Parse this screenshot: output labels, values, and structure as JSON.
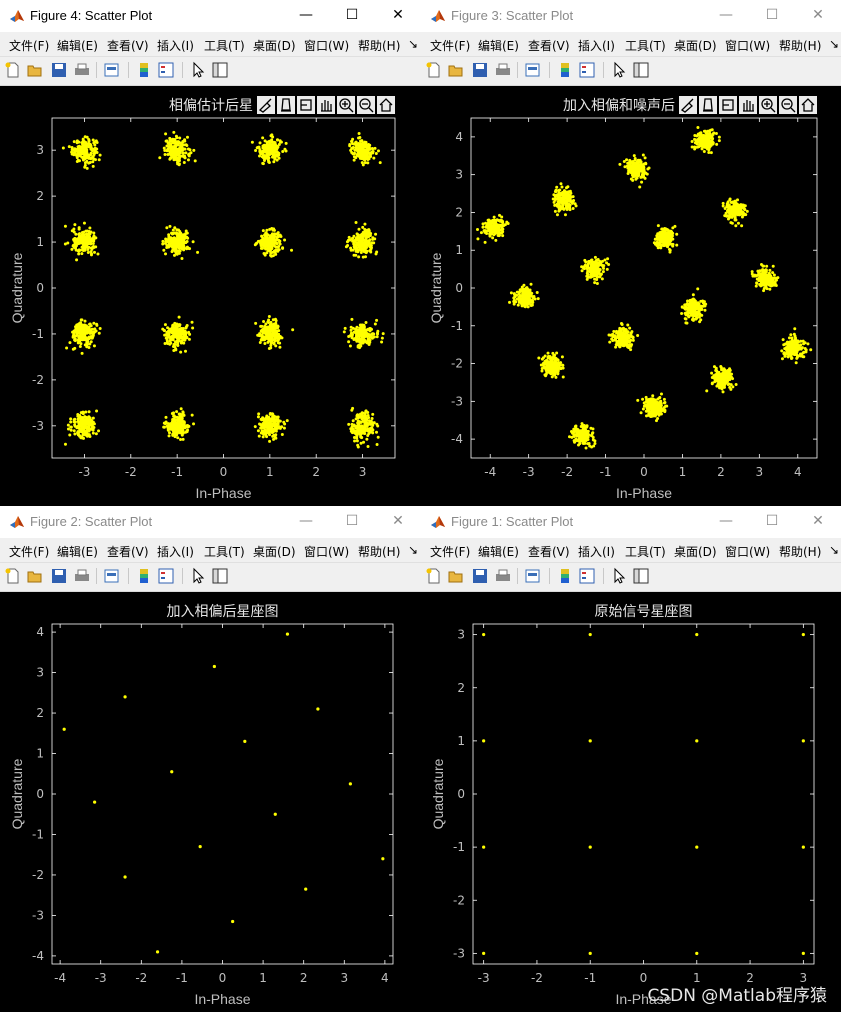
{
  "menu": [
    "文件(F)",
    "编辑(E)",
    "查看(V)",
    "插入(I)",
    "工具(T)",
    "桌面(D)",
    "窗口(W)",
    "帮助(H)"
  ],
  "menu_overflow": "↘",
  "toolbar_icons": [
    "new-file-icon",
    "open-folder-icon",
    "save-icon",
    "print-icon",
    "print-preview-icon",
    "colorbar-icon",
    "legend-icon",
    "pointer-icon",
    "property-editor-icon"
  ],
  "axes_toolbar_icons": [
    "brush-icon",
    "data-tips-icon",
    "rotate-icon",
    "pan-icon",
    "zoom-in-icon",
    "zoom-out-icon",
    "home-icon"
  ],
  "colors": {
    "points": "#ffff00",
    "axes": "#ffffff",
    "ticks": "#bfbfbf",
    "background": "#000000",
    "grid": "#444444"
  },
  "figures": [
    {
      "id": "fig4",
      "window_title": "Figure 4: Scatter Plot",
      "active": true,
      "chart_data": {
        "type": "scatter",
        "title": "相偏估计后星",
        "xlabel": "In-Phase",
        "ylabel": "Quadrature",
        "xlim": [
          -3.7,
          3.7
        ],
        "ylim": [
          -3.7,
          3.7
        ],
        "xticks": [
          -3,
          -2,
          -1,
          0,
          1,
          2,
          3
        ],
        "yticks": [
          -3,
          -2,
          -1,
          0,
          1,
          2,
          3
        ],
        "noise": 0.13,
        "points_per_cluster": 180,
        "grid": false,
        "legend": "none",
        "clusters": [
          [
            -3,
            3
          ],
          [
            -1,
            3
          ],
          [
            1,
            3
          ],
          [
            3,
            3
          ],
          [
            -3,
            1
          ],
          [
            -1,
            1
          ],
          [
            1,
            1
          ],
          [
            3,
            1
          ],
          [
            -3,
            -1
          ],
          [
            -1,
            -1
          ],
          [
            1,
            -1
          ],
          [
            3,
            -1
          ],
          [
            -3,
            -3
          ],
          [
            -1,
            -3
          ],
          [
            1,
            -3
          ],
          [
            3,
            -3
          ]
        ]
      }
    },
    {
      "id": "fig3",
      "window_title": "Figure 3: Scatter Plot",
      "active": false,
      "chart_data": {
        "type": "scatter",
        "title": "加入相偏和噪声后",
        "xlabel": "In-Phase",
        "ylabel": "Quadrature",
        "xlim": [
          -4.5,
          4.5
        ],
        "ylim": [
          -4.5,
          4.5
        ],
        "xticks": [
          -4,
          -3,
          -2,
          -1,
          0,
          1,
          2,
          3,
          4
        ],
        "yticks": [
          -4,
          -3,
          -2,
          -1,
          0,
          1,
          2,
          3,
          4
        ],
        "noise": 0.13,
        "points_per_cluster": 180,
        "grid": false,
        "legend": "none",
        "clusters": [
          [
            -3.9,
            1.6
          ],
          [
            -3.1,
            -0.25
          ],
          [
            -2.1,
            2.35
          ],
          [
            -1.3,
            0.5
          ],
          [
            -0.2,
            3.15
          ],
          [
            0.55,
            1.3
          ],
          [
            1.6,
            3.9
          ],
          [
            2.35,
            2.05
          ],
          [
            -2.4,
            -2.05
          ],
          [
            -0.55,
            -1.3
          ],
          [
            1.3,
            -0.55
          ],
          [
            3.15,
            0.25
          ],
          [
            -1.6,
            -3.9
          ],
          [
            0.25,
            -3.15
          ],
          [
            2.05,
            -2.4
          ],
          [
            3.9,
            -1.6
          ]
        ]
      }
    },
    {
      "id": "fig2",
      "window_title": "Figure 2: Scatter Plot",
      "active": false,
      "chart_data": {
        "type": "scatter",
        "title": "加入相偏后星座图",
        "xlabel": "In-Phase",
        "ylabel": "Quadrature",
        "xlim": [
          -4.2,
          4.2
        ],
        "ylim": [
          -4.2,
          4.2
        ],
        "xticks": [
          -4,
          -3,
          -2,
          -1,
          0,
          1,
          2,
          3,
          4
        ],
        "yticks": [
          -4,
          -3,
          -2,
          -1,
          0,
          1,
          2,
          3,
          4
        ],
        "noise": 0,
        "points_per_cluster": 1,
        "grid": false,
        "legend": "none",
        "clusters": [
          [
            -3.9,
            1.6
          ],
          [
            -3.15,
            -0.2
          ],
          [
            -2.4,
            2.4
          ],
          [
            -1.25,
            0.55
          ],
          [
            -0.2,
            3.15
          ],
          [
            0.55,
            1.3
          ],
          [
            1.6,
            3.95
          ],
          [
            2.35,
            2.1
          ],
          [
            -2.4,
            -2.05
          ],
          [
            -0.55,
            -1.3
          ],
          [
            1.3,
            -0.5
          ],
          [
            3.15,
            0.25
          ],
          [
            -1.6,
            -3.9
          ],
          [
            0.25,
            -3.15
          ],
          [
            2.05,
            -2.35
          ],
          [
            3.95,
            -1.6
          ]
        ]
      }
    },
    {
      "id": "fig1",
      "window_title": "Figure 1: Scatter Plot",
      "active": false,
      "chart_data": {
        "type": "scatter",
        "title": "原始信号星座图",
        "xlabel": "In-Phase",
        "ylabel": "Quadrature",
        "xlim": [
          -3.2,
          3.2
        ],
        "ylim": [
          -3.2,
          3.2
        ],
        "xticks": [
          -3,
          -2,
          -1,
          0,
          1,
          2,
          3
        ],
        "yticks": [
          -3,
          -2,
          -1,
          0,
          1,
          2,
          3
        ],
        "noise": 0,
        "points_per_cluster": 1,
        "grid": false,
        "legend": "none",
        "clusters": [
          [
            -3,
            3
          ],
          [
            -1,
            3
          ],
          [
            1,
            3
          ],
          [
            3,
            3
          ],
          [
            -3,
            1
          ],
          [
            -1,
            1
          ],
          [
            1,
            1
          ],
          [
            3,
            1
          ],
          [
            -3,
            -1
          ],
          [
            -1,
            -1
          ],
          [
            1,
            -1
          ],
          [
            3,
            -1
          ],
          [
            -3,
            -3
          ],
          [
            -1,
            -3
          ],
          [
            1,
            -3
          ],
          [
            3,
            -3
          ]
        ]
      }
    }
  ],
  "watermark": "CSDN @Matlab程序猿"
}
